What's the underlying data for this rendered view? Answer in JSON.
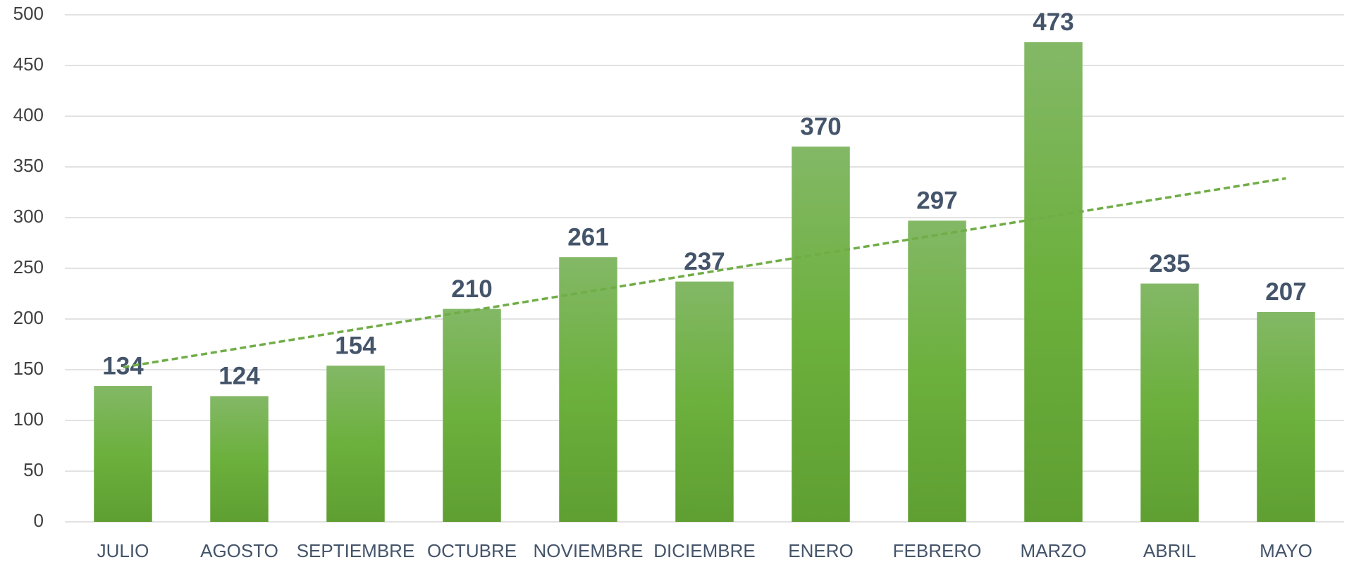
{
  "chart_data": {
    "type": "bar",
    "categories": [
      "JULIO",
      "AGOSTO",
      "SEPTIEMBRE",
      "OCTUBRE",
      "NOVIEMBRE",
      "DICIEMBRE",
      "ENERO",
      "FEBRERO",
      "MARZO",
      "ABRIL",
      "MAYO"
    ],
    "values": [
      134,
      124,
      154,
      210,
      261,
      237,
      370,
      297,
      473,
      235,
      207
    ],
    "color": "#6aad3d",
    "ylim": [
      0,
      500
    ],
    "yticks": [
      0,
      50,
      100,
      150,
      200,
      250,
      300,
      350,
      400,
      450,
      500
    ],
    "grid": true,
    "trendline": "linear",
    "trendline_color": "#70ad47"
  }
}
